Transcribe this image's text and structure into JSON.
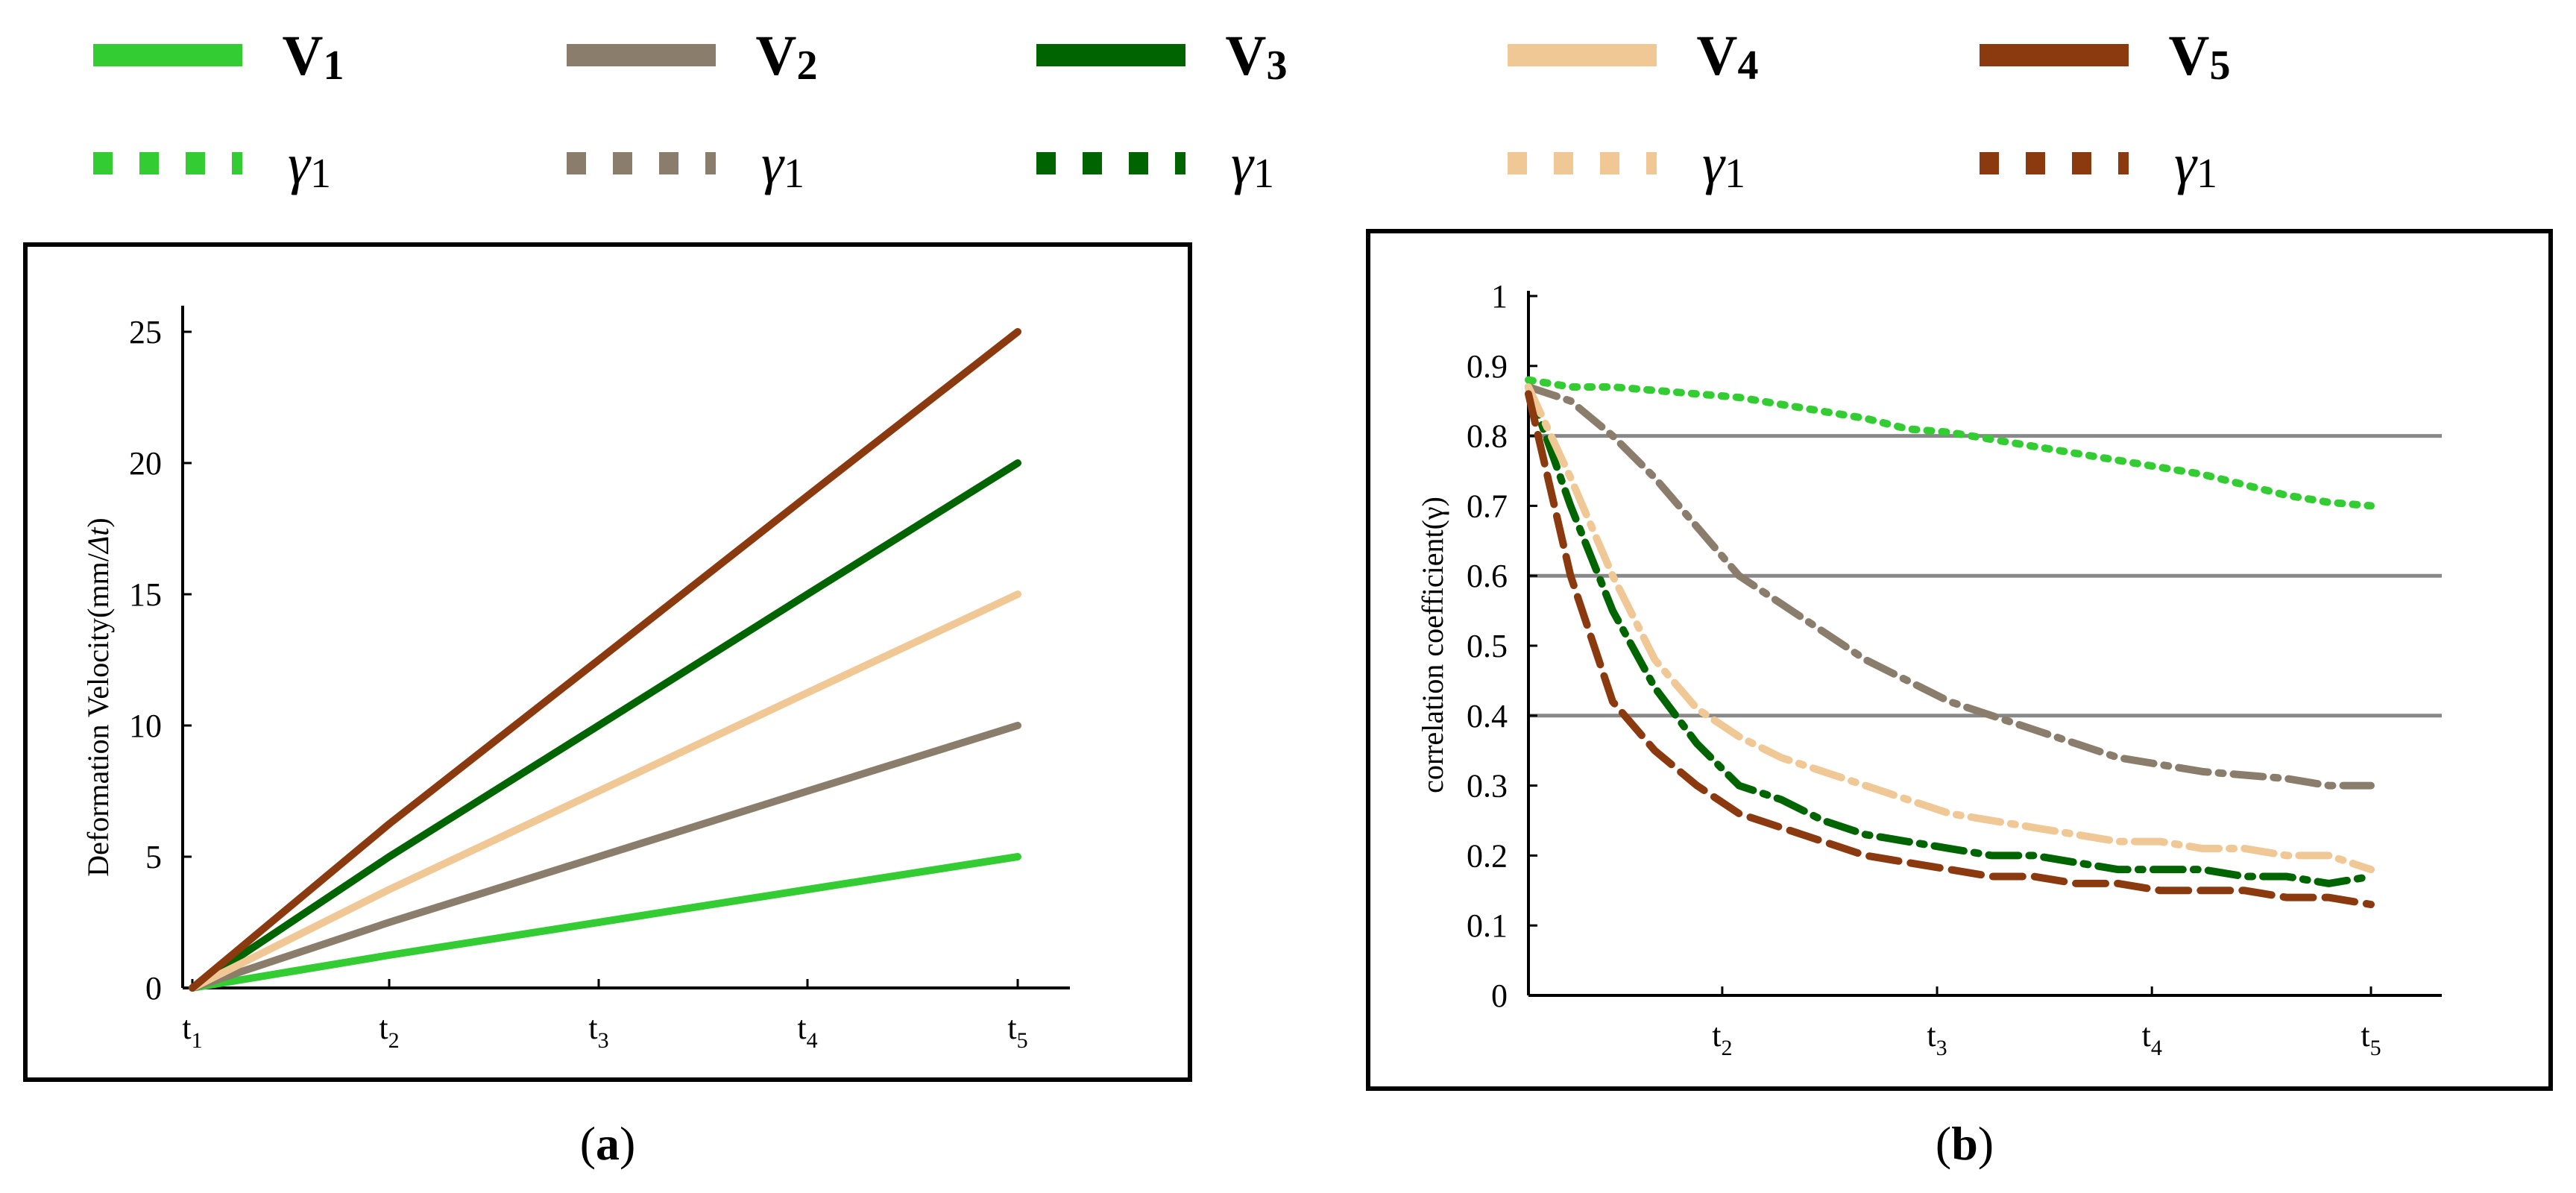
{
  "legend": {
    "velocity_entries": [
      {
        "label": "V",
        "sub": "1",
        "color": "#33cc33"
      },
      {
        "label": "V",
        "sub": "2",
        "color": "#8b7d6b"
      },
      {
        "label": "V",
        "sub": "3",
        "color": "#006400"
      },
      {
        "label": "V",
        "sub": "4",
        "color": "#f0c896"
      },
      {
        "label": "V",
        "sub": "5",
        "color": "#8b3a0f"
      }
    ],
    "gamma_entries": [
      {
        "label": "γ",
        "sub": "1",
        "color": "#33cc33"
      },
      {
        "label": "γ",
        "sub": "1",
        "color": "#8b7d6b"
      },
      {
        "label": "γ",
        "sub": "1",
        "color": "#006400"
      },
      {
        "label": "γ",
        "sub": "1",
        "color": "#f0c896"
      },
      {
        "label": "γ",
        "sub": "1",
        "color": "#8b3a0f"
      }
    ]
  },
  "panel_labels": {
    "a": {
      "open": "(",
      "letter": "a",
      "close": ")"
    },
    "b": {
      "open": "(",
      "letter": "b",
      "close": ")"
    }
  },
  "chart_data": [
    {
      "id": "a",
      "type": "line",
      "title": "",
      "xlabel": "",
      "ylabel": "Deformation Velocity(mm/Δt)",
      "ylabel_parts": {
        "main": "Deformation Velocity(mm/",
        "italic": "Δt",
        "close": ")"
      },
      "categories": [
        "t1",
        "t2",
        "t3",
        "t4",
        "t5"
      ],
      "x_ticks": [
        {
          "main": "t",
          "sub": "1"
        },
        {
          "main": "t",
          "sub": "2"
        },
        {
          "main": "t",
          "sub": "3"
        },
        {
          "main": "t",
          "sub": "4"
        },
        {
          "main": "t",
          "sub": "5"
        }
      ],
      "ylim": [
        0,
        25
      ],
      "y_ticks": [
        "0",
        "5",
        "10",
        "15",
        "20",
        "25"
      ],
      "grid": false,
      "series": [
        {
          "name": "V1",
          "color": "#33cc33",
          "values": [
            0,
            1.25,
            2.5,
            3.75,
            5
          ]
        },
        {
          "name": "V2",
          "color": "#8b7d6b",
          "values": [
            0,
            2.5,
            5,
            7.5,
            10
          ]
        },
        {
          "name": "V3",
          "color": "#006400",
          "values": [
            0,
            5,
            10,
            15,
            20
          ]
        },
        {
          "name": "V4",
          "color": "#f0c896",
          "values": [
            0,
            3.75,
            7.5,
            11.25,
            15
          ]
        },
        {
          "name": "V5",
          "color": "#8b3a0f",
          "values": [
            0,
            6.25,
            12.5,
            18.75,
            25
          ]
        }
      ]
    },
    {
      "id": "b",
      "type": "line",
      "title": "",
      "xlabel": "",
      "ylabel": "correlation coefficient(γ)",
      "x_range": [
        0,
        100
      ],
      "x_ticks": [
        {
          "value": 23,
          "main": "t",
          "sub": "2"
        },
        {
          "value": 48.5,
          "main": "t",
          "sub": "3"
        },
        {
          "value": 74,
          "main": "t",
          "sub": "4"
        },
        {
          "value": 100,
          "main": "t",
          "sub": "5"
        }
      ],
      "ylim": [
        0,
        1
      ],
      "y_ticks": [
        "0",
        "0.1",
        "0.2",
        "0.3",
        "0.4",
        "0.5",
        "0.6",
        "0.7",
        "0.8",
        "0.9",
        "1"
      ],
      "reference_lines": [
        0.8,
        0.6,
        0.4
      ],
      "grid": false,
      "series": [
        {
          "name": "γ1 (V1)",
          "color": "#33cc33",
          "x": [
            0,
            5,
            10,
            15,
            20,
            25,
            30,
            35,
            40,
            45,
            50,
            55,
            60,
            65,
            70,
            75,
            80,
            85,
            90,
            95,
            100
          ],
          "values": [
            0.88,
            0.87,
            0.87,
            0.865,
            0.86,
            0.855,
            0.845,
            0.835,
            0.825,
            0.81,
            0.805,
            0.795,
            0.785,
            0.775,
            0.765,
            0.755,
            0.745,
            0.73,
            0.715,
            0.705,
            0.7
          ]
        },
        {
          "name": "γ1 (V2)",
          "color": "#8b7d6b",
          "x": [
            0,
            5,
            10,
            15,
            20,
            25,
            30,
            35,
            40,
            45,
            50,
            55,
            60,
            65,
            70,
            75,
            80,
            85,
            90,
            95,
            100
          ],
          "values": [
            0.87,
            0.85,
            0.8,
            0.74,
            0.67,
            0.6,
            0.56,
            0.52,
            0.48,
            0.45,
            0.42,
            0.4,
            0.38,
            0.36,
            0.34,
            0.33,
            0.32,
            0.315,
            0.31,
            0.3,
            0.3
          ]
        },
        {
          "name": "γ1 (V3)",
          "color": "#006400",
          "x": [
            0,
            5,
            10,
            15,
            20,
            25,
            30,
            35,
            40,
            45,
            50,
            55,
            60,
            65,
            70,
            75,
            80,
            85,
            90,
            95,
            100
          ],
          "values": [
            0.87,
            0.7,
            0.55,
            0.44,
            0.36,
            0.3,
            0.28,
            0.25,
            0.23,
            0.22,
            0.21,
            0.2,
            0.2,
            0.19,
            0.18,
            0.18,
            0.18,
            0.17,
            0.17,
            0.16,
            0.17
          ]
        },
        {
          "name": "γ1 (V4)",
          "color": "#f0c896",
          "x": [
            0,
            5,
            10,
            15,
            20,
            25,
            30,
            35,
            40,
            45,
            50,
            55,
            60,
            65,
            70,
            75,
            80,
            85,
            90,
            95,
            100
          ],
          "values": [
            0.87,
            0.74,
            0.6,
            0.48,
            0.41,
            0.37,
            0.34,
            0.32,
            0.3,
            0.28,
            0.26,
            0.25,
            0.24,
            0.23,
            0.22,
            0.22,
            0.21,
            0.21,
            0.2,
            0.2,
            0.18
          ]
        },
        {
          "name": "γ1 (V5)",
          "color": "#8b3a0f",
          "x": [
            0,
            5,
            10,
            15,
            20,
            25,
            30,
            35,
            40,
            45,
            50,
            55,
            60,
            65,
            70,
            75,
            80,
            85,
            90,
            95,
            100
          ],
          "values": [
            0.86,
            0.6,
            0.42,
            0.35,
            0.3,
            0.26,
            0.24,
            0.22,
            0.2,
            0.19,
            0.18,
            0.17,
            0.17,
            0.16,
            0.16,
            0.15,
            0.15,
            0.15,
            0.14,
            0.14,
            0.13
          ]
        }
      ]
    }
  ]
}
